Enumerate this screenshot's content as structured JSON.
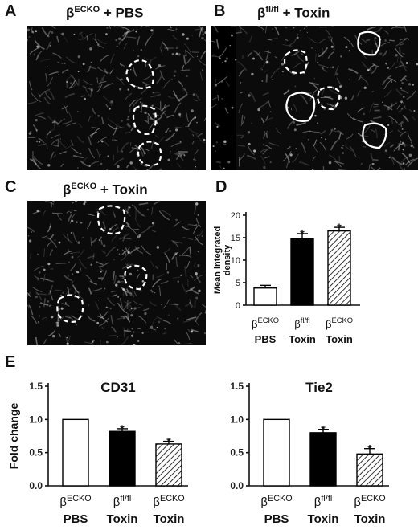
{
  "panels": {
    "A": {
      "letter": "A",
      "title_greek": "β",
      "title_super": "ECKO",
      "title_rest": " + PBS"
    },
    "B": {
      "letter": "B",
      "title_greek": "β",
      "title_super": "fl/fl",
      "title_rest": " + Toxin"
    },
    "C": {
      "letter": "C",
      "title_greek": "β",
      "title_super": "ECKO",
      "title_rest": " + Toxin"
    },
    "D": {
      "letter": "D"
    },
    "E": {
      "letter": "E"
    }
  },
  "colors": {
    "image_bg": "#0b0b0b",
    "outline": "#ffffff",
    "bar_fill_pbs": "#ffffff",
    "bar_fill_flfl": "#000000",
    "bar_hatch": "#000000"
  },
  "chart_data": [
    {
      "type": "bar",
      "panel": "D",
      "title": "",
      "ylabel": "Mean integrated density",
      "ylim": [
        0,
        20
      ],
      "yticks": [
        0,
        5,
        10,
        15,
        20
      ],
      "categories": [
        {
          "greek": "β",
          "super": "ECKO",
          "sub": "PBS"
        },
        {
          "greek": "β",
          "super": "fl/fl",
          "sub": "Toxin"
        },
        {
          "greek": "β",
          "super": "ECKO",
          "sub": "Toxin"
        }
      ],
      "values": [
        3.8,
        14.7,
        16.5
      ],
      "errors": [
        0.6,
        1.2,
        0.8
      ],
      "significance": [
        "",
        "*",
        "*"
      ],
      "fills": [
        "white",
        "black",
        "hatch"
      ]
    },
    {
      "type": "bar",
      "panel": "E-left",
      "title": "CD31",
      "ylabel": "Fold change",
      "ylim": [
        0,
        1.5
      ],
      "yticks": [
        "0.0",
        "0.5",
        "1.0",
        "1.5"
      ],
      "categories": [
        {
          "greek": "β",
          "super": "ECKO",
          "sub": "PBS"
        },
        {
          "greek": "β",
          "super": "fl/fl",
          "sub": "Toxin"
        },
        {
          "greek": "β",
          "super": "ECKO",
          "sub": "Toxin"
        }
      ],
      "values": [
        1.0,
        0.82,
        0.63
      ],
      "errors": [
        0,
        0.04,
        0.04
      ],
      "significance": [
        "",
        "*",
        "*"
      ],
      "fills": [
        "white",
        "black",
        "hatch"
      ]
    },
    {
      "type": "bar",
      "panel": "E-right",
      "title": "Tie2",
      "ylabel": "",
      "ylim": [
        0,
        1.5
      ],
      "yticks": [
        "0.0",
        "0.5",
        "1.0",
        "1.5"
      ],
      "categories": [
        {
          "greek": "β",
          "super": "ECKO",
          "sub": "PBS"
        },
        {
          "greek": "β",
          "super": "fl/fl",
          "sub": "Toxin"
        },
        {
          "greek": "β",
          "super": "ECKO",
          "sub": "Toxin"
        }
      ],
      "values": [
        1.0,
        0.8,
        0.48
      ],
      "errors": [
        0,
        0.05,
        0.08
      ],
      "significance": [
        "",
        "*",
        "*"
      ],
      "fills": [
        "white",
        "black",
        "hatch"
      ]
    }
  ]
}
